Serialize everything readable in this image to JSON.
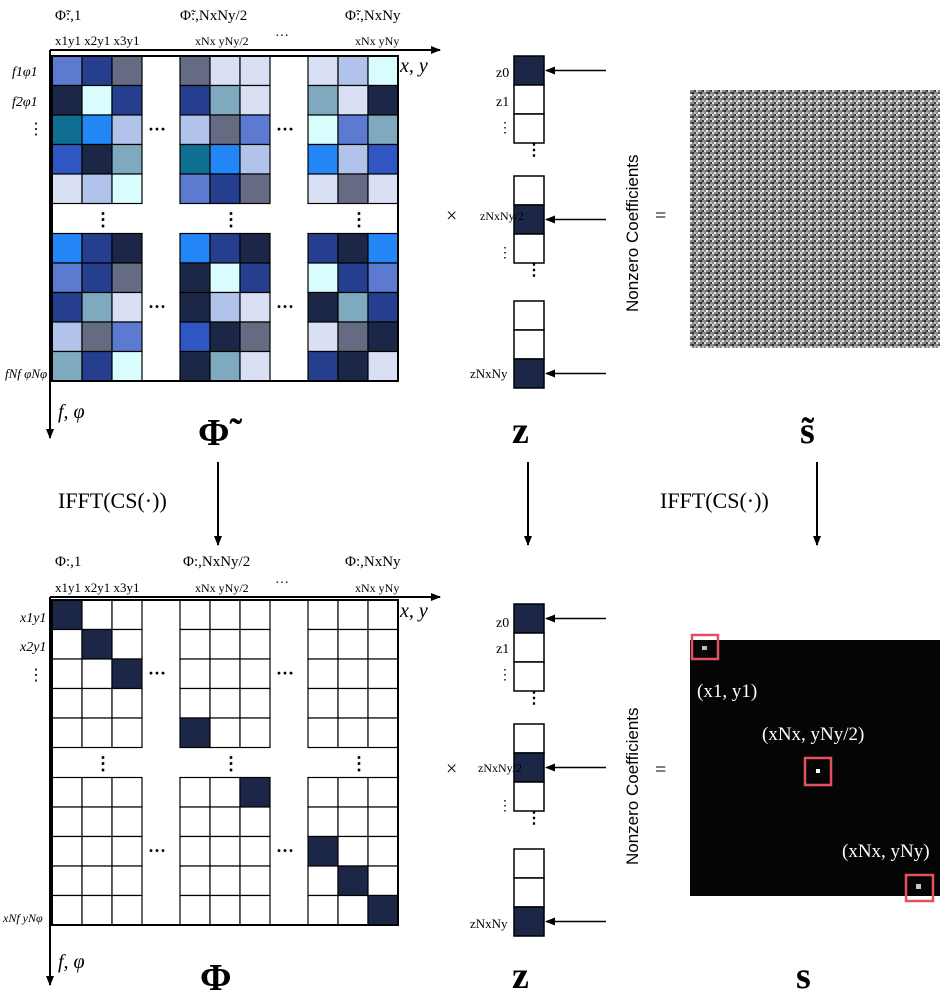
{
  "colors": {
    "dark_navy": "#1c2747",
    "medium_blue": "#253f8e",
    "slate_gray": "#646b82",
    "light_lavender": "#d9e0f4",
    "pale_cyan": "#d9fdfd",
    "bright_blue": "#2386f6",
    "teal": "#0e6f91",
    "gray_blue": "#7fa9be",
    "royal_blue": "#2f56c3",
    "soft_blue": "#b1c3ea",
    "periwinkle": "#5b7ad0",
    "highlight_box": "#e35060",
    "black_panel": "#050505",
    "border": "#000000"
  },
  "top": {
    "col_headers": {
      "first": "Φ̃:,1",
      "middle": "Φ̃:,NxNy/2",
      "last": "Φ̃:,NxNy"
    },
    "col_labels": {
      "first": "x1y1 x2y1 x3y1",
      "middle": "xNx yNy/2",
      "last": "xNx yNy"
    },
    "ellipsis": "···",
    "vdots": "⋮",
    "row_labels": [
      "f1φ1",
      "f2φ1",
      "⋮",
      "fNf φNφ"
    ],
    "axis_x": "x, y",
    "axis_y": "f, φ",
    "matrix_symbol": "Φ̃",
    "times": "×",
    "vector_labels": [
      "z0",
      "z1",
      "⋮",
      "zNxNy/2",
      "⋮",
      "zNxNy"
    ],
    "vector_symbol": "z",
    "equals": "=",
    "coefficients_label": "Nonzero Coefficients",
    "result_symbol": "s̃"
  },
  "arrows": {
    "left_label": "IFFT(CS(·))",
    "right_label": "IFFT(CS(·))"
  },
  "bottom": {
    "col_headers": {
      "first": "Φ:,1",
      "middle": "Φ:,NxNy/2",
      "last": "Φ:,NxNy"
    },
    "col_labels": {
      "first": "x1y1 x2y1 x3y1",
      "middle": "xNx yNy/2",
      "last": "xNx yNy"
    },
    "ellipsis": "···",
    "vdots": "⋮",
    "row_labels": [
      "x1y1",
      "x2y1",
      "⋮",
      "xNf yNφ"
    ],
    "axis_x": "x, y",
    "axis_y": "f, φ",
    "matrix_symbol": "Φ",
    "times": "×",
    "vector_labels": [
      "z0",
      "z1",
      "⋮",
      "zNxNy/2",
      "⋮",
      "zNxNy"
    ],
    "vector_symbol": "z",
    "equals": "=",
    "coefficients_label": "Nonzero Coefficients",
    "result_symbol": "s",
    "peaks": [
      {
        "label": "(x1, y1)"
      },
      {
        "label": "(xNx, yNy/2)"
      },
      {
        "label": "(xNx, yNy)"
      }
    ]
  }
}
